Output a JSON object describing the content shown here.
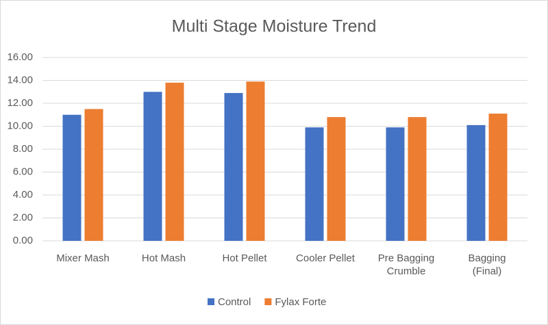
{
  "chart_data": {
    "type": "bar",
    "title": "Multi Stage Moisture Trend",
    "categories": [
      "Mixer Mash",
      "Hot Mash",
      "Hot Pellet",
      "Cooler Pellet",
      "Pre Bagging\nCrumble",
      "Bagging\n(Final)"
    ],
    "series": [
      {
        "name": "Control",
        "color": "#4472c4",
        "values": [
          11.0,
          13.0,
          12.9,
          9.9,
          9.9,
          10.1
        ]
      },
      {
        "name": "Fylax Forte",
        "color": "#ed7d31",
        "values": [
          11.5,
          13.8,
          13.9,
          10.8,
          10.8,
          11.1
        ]
      }
    ],
    "ylim": [
      0,
      16
    ],
    "yticks": [
      {
        "value": 0,
        "label": "0.00"
      },
      {
        "value": 2,
        "label": "2.00"
      },
      {
        "value": 4,
        "label": "4.00"
      },
      {
        "value": 6,
        "label": "6.00"
      },
      {
        "value": 8,
        "label": "8.00"
      },
      {
        "value": 10,
        "label": "10.00"
      },
      {
        "value": 12,
        "label": "12.00"
      },
      {
        "value": 14,
        "label": "14.00"
      },
      {
        "value": 16,
        "label": "16.00"
      }
    ],
    "grid": true,
    "legend": "bottom"
  }
}
